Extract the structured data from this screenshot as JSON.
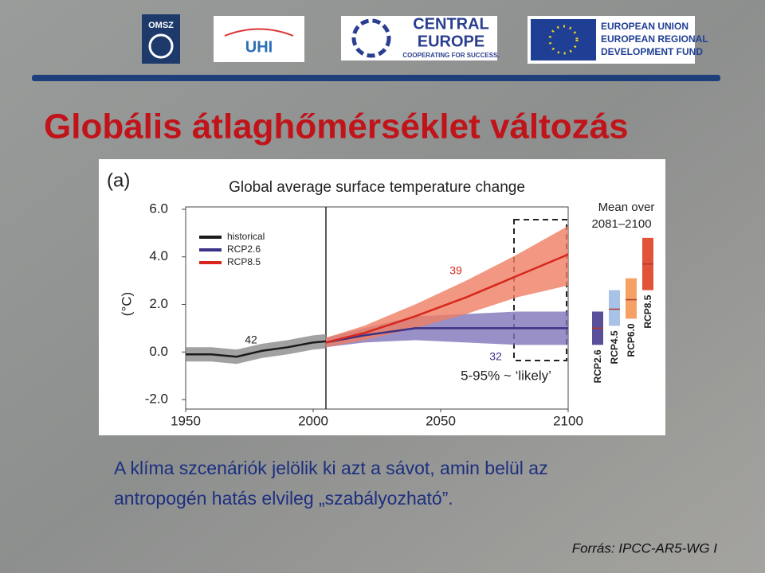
{
  "logos": {
    "omsz": "OMSZ",
    "uhi": "UHI",
    "central_europe": [
      "CENTRAL",
      "EUROPE",
      "COOPERATING FOR SUCCESS."
    ],
    "eu": [
      "EUROPEAN UNION",
      "EUROPEAN REGIONAL",
      "DEVELOPMENT FUND"
    ]
  },
  "title": "Globális átlaghőmérséklet változás",
  "chart_data": {
    "type": "line",
    "panel": "(a)",
    "title": "Global average surface temperature change",
    "y_label": "(°C)",
    "xlim": [
      1950,
      2100
    ],
    "xticks": [
      1950,
      2000,
      2050,
      2100
    ],
    "ylim": [
      -2.4,
      6.1
    ],
    "yticks": [
      {
        "value": -2,
        "label": "-2.0"
      },
      {
        "value": 0,
        "label": "0.0"
      },
      {
        "value": 2,
        "label": "2.0"
      },
      {
        "value": 4,
        "label": "4.0"
      },
      {
        "value": 6,
        "label": "6.0"
      }
    ],
    "legend": "upper left",
    "series": [
      {
        "name": "historical",
        "color": "#1a1a1a",
        "band_color": "#8a8a8a",
        "x": [
          1950,
          1960,
          1970,
          1980,
          1990,
          2000,
          2005
        ],
        "values": [
          -0.1,
          -0.1,
          -0.2,
          0.05,
          0.2,
          0.4,
          0.45
        ],
        "lower": [
          -0.4,
          -0.4,
          -0.5,
          -0.25,
          -0.1,
          0.1,
          0.15
        ],
        "upper": [
          0.2,
          0.2,
          0.1,
          0.35,
          0.5,
          0.7,
          0.75
        ]
      },
      {
        "name": "RCP2.6",
        "color": "#3b3285",
        "band_color": "#7f74b9",
        "x": [
          2005,
          2020,
          2040,
          2060,
          2080,
          2100
        ],
        "values": [
          0.4,
          0.7,
          1.0,
          1.0,
          1.0,
          1.0
        ],
        "lower": [
          0.2,
          0.4,
          0.5,
          0.4,
          0.3,
          0.3
        ],
        "upper": [
          0.6,
          1.0,
          1.5,
          1.6,
          1.7,
          1.7
        ]
      },
      {
        "name": "RCP8.5",
        "color": "#d7261e",
        "band_color": "#ef7d62",
        "x": [
          2005,
          2020,
          2040,
          2060,
          2080,
          2100
        ],
        "values": [
          0.4,
          0.8,
          1.5,
          2.3,
          3.2,
          4.1
        ],
        "lower": [
          0.2,
          0.5,
          1.0,
          1.6,
          2.3,
          2.8
        ],
        "upper": [
          0.6,
          1.1,
          2.0,
          3.0,
          4.1,
          5.3
        ]
      }
    ],
    "annotations": [
      "42",
      "39",
      "32",
      "5-95% ~ ‘likely’"
    ],
    "period_means": {
      "title": [
        "Mean over",
        "2081–2100"
      ],
      "bars": [
        {
          "name": "RCP2.6",
          "color": "#5a4f99",
          "mean": 1.0,
          "low": 0.3,
          "high": 1.7
        },
        {
          "name": "RCP4.5",
          "color": "#a9c3e8",
          "mean": 1.8,
          "low": 1.1,
          "high": 2.6
        },
        {
          "name": "RCP6.0",
          "color": "#f5a165",
          "mean": 2.2,
          "low": 1.4,
          "high": 3.1
        },
        {
          "name": "RCP8.5",
          "color": "#e2543a",
          "mean": 3.7,
          "low": 2.6,
          "high": 4.8
        }
      ]
    }
  },
  "body": [
    "A klíma szcenáriók jelölik ki azt a sávot, amin belül az",
    "antropogén hatás elvileg „szabályozható”."
  ],
  "source": "Forrás:  IPCC-AR5-WG I"
}
